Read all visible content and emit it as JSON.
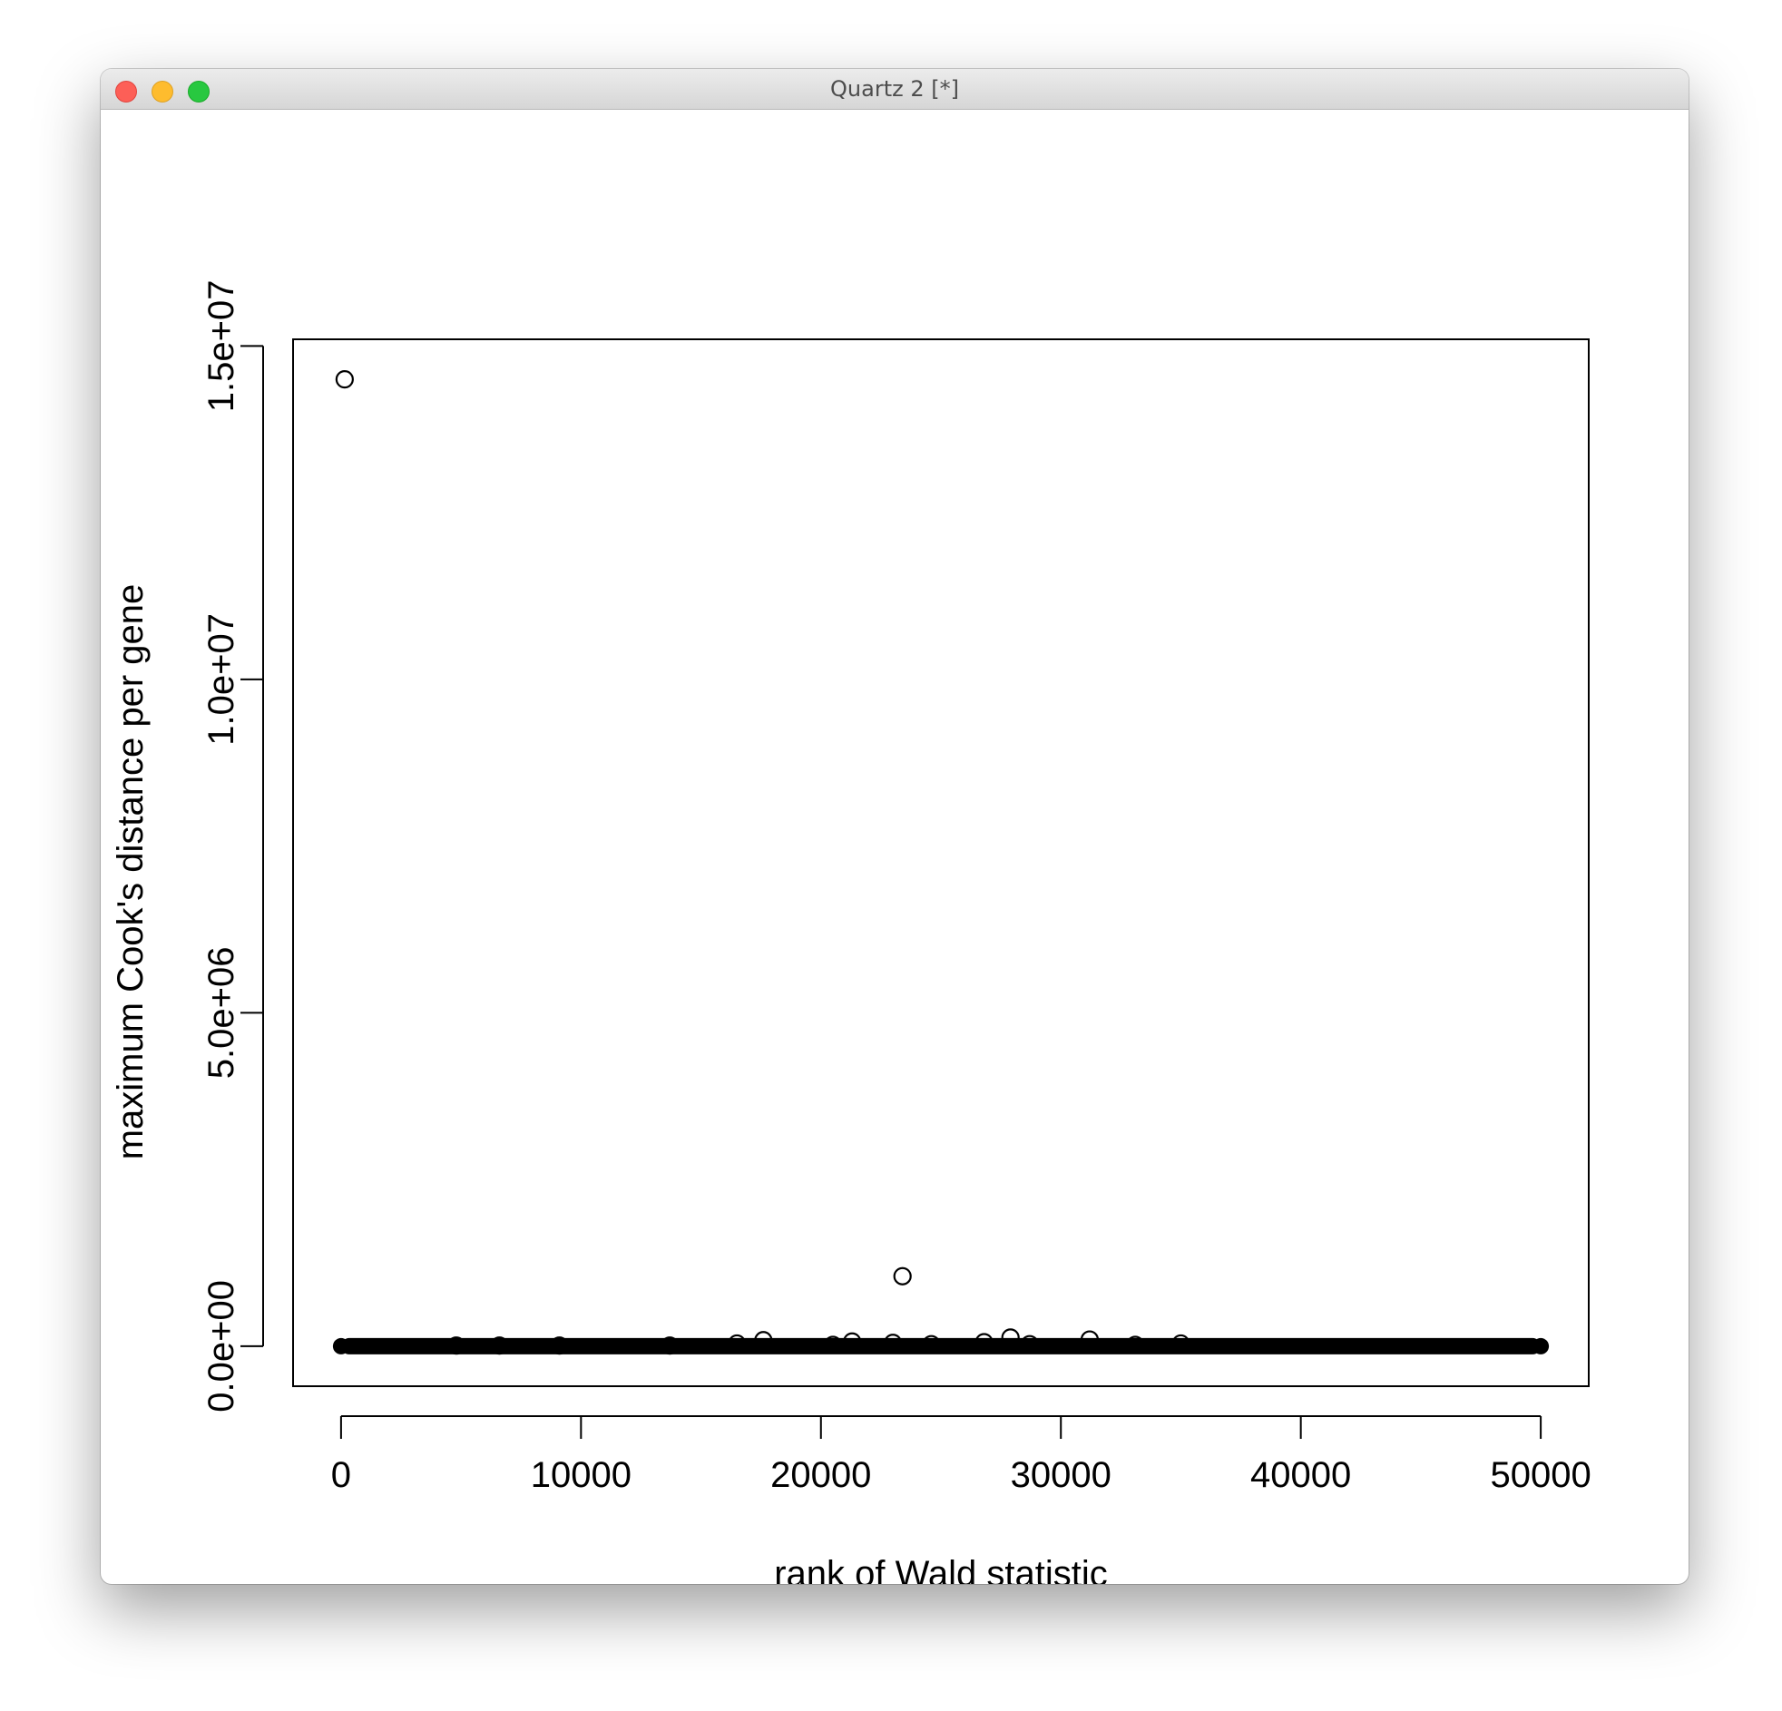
{
  "window": {
    "title": "Quartz 2 [*]",
    "buttons": [
      "close",
      "minimize",
      "zoom"
    ]
  },
  "chart_data": {
    "type": "scatter",
    "title": "",
    "xlabel": "rank of Wald statistic",
    "ylabel": "maximum Cook's distance per gene",
    "xlim": [
      -2000,
      52000
    ],
    "ylim": [
      -600000,
      15100000
    ],
    "x_ticks": [
      0,
      10000,
      20000,
      30000,
      40000,
      50000
    ],
    "x_tick_labels": [
      "0",
      "10000",
      "20000",
      "30000",
      "40000",
      "50000"
    ],
    "y_ticks": [
      0,
      5000000,
      10000000,
      15000000
    ],
    "y_tick_labels": [
      "0.0e+00",
      "5.0e+06",
      "1.0e+07",
      "1.5e+07"
    ],
    "grid": false,
    "marker": "open-circle",
    "dense_band": {
      "x_range": [
        0,
        50000
      ],
      "y": 0
    },
    "points": [
      {
        "x": 150,
        "y": 14500000
      },
      {
        "x": 23400,
        "y": 1050000
      },
      {
        "x": 27900,
        "y": 130000
      },
      {
        "x": 31200,
        "y": 100000
      },
      {
        "x": 17600,
        "y": 90000
      },
      {
        "x": 21300,
        "y": 70000
      },
      {
        "x": 26800,
        "y": 60000
      },
      {
        "x": 23000,
        "y": 50000
      },
      {
        "x": 16500,
        "y": 40000
      },
      {
        "x": 35000,
        "y": 40000
      },
      {
        "x": 24600,
        "y": 30000
      },
      {
        "x": 28700,
        "y": 30000
      },
      {
        "x": 20500,
        "y": 20000
      },
      {
        "x": 33100,
        "y": 20000
      },
      {
        "x": 4800,
        "y": 10000
      },
      {
        "x": 6600,
        "y": 10000
      },
      {
        "x": 9100,
        "y": 10000
      },
      {
        "x": 13700,
        "y": 10000
      }
    ]
  }
}
